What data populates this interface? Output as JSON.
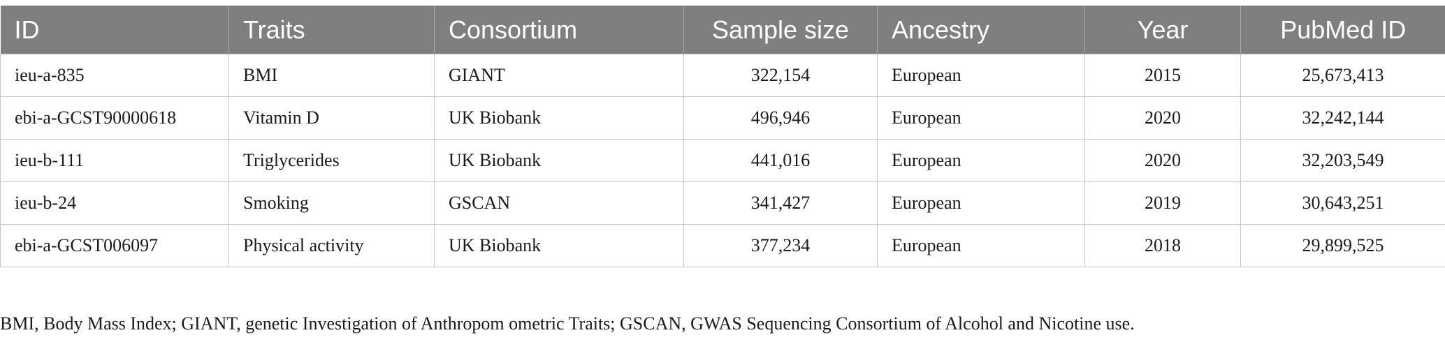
{
  "table": {
    "headers": [
      "ID",
      "Traits",
      "Consortium",
      "Sample size",
      "Ancestry",
      "Year",
      "PubMed ID"
    ],
    "rows": [
      [
        "ieu-a-835",
        "BMI",
        "GIANT",
        "322,154",
        "European",
        "2015",
        "25,673,413"
      ],
      [
        "ebi-a-GCST90000618",
        "Vitamin D",
        "UK Biobank",
        "496,946",
        "European",
        "2020",
        "32,242,144"
      ],
      [
        "ieu-b-111",
        "Triglycerides",
        "UK Biobank",
        "441,016",
        "European",
        "2020",
        "32,203,549"
      ],
      [
        "ieu-b-24",
        "Smoking",
        "GSCAN",
        "341,427",
        "European",
        "2019",
        "30,643,251"
      ],
      [
        "ebi-a-GCST006097",
        "Physical activity",
        "UK Biobank",
        "377,234",
        "European",
        "2018",
        "29,899,525"
      ]
    ]
  },
  "footnote": "BMI, Body Mass Index; GIANT, genetic Investigation of Anthropom ometric Traits; GSCAN, GWAS Sequencing Consortium of Alcohol and Nicotine use.",
  "colors": {
    "header_bg": "#7f7f7e",
    "header_text": "#ffffff",
    "border": "#c4c4c4"
  }
}
